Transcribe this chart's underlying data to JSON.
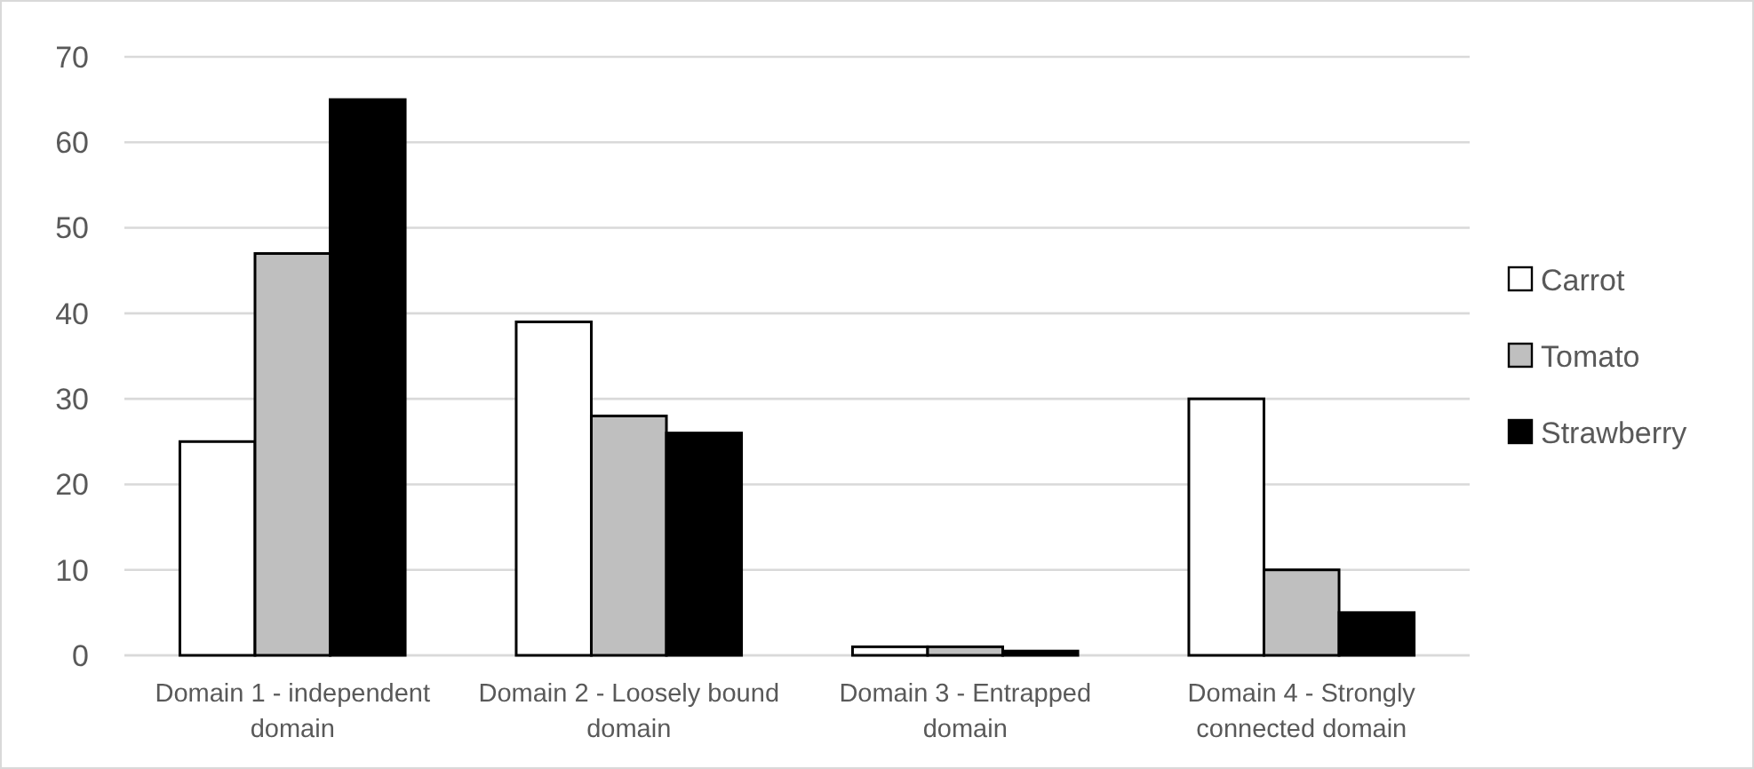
{
  "chart_data": {
    "type": "bar",
    "categories": [
      "Domain 1 - independent domain",
      "Domain 2 - Loosely bound domain",
      "Domain 3 - Entrapped domain",
      "Domain 4 - Strongly connected domain"
    ],
    "series": [
      {
        "name": "Carrot",
        "color": "#ffffff",
        "values": [
          25,
          39,
          1,
          30
        ]
      },
      {
        "name": "Tomato",
        "color": "#bfbfbf",
        "values": [
          47,
          28,
          1,
          10
        ]
      },
      {
        "name": "Strawberry",
        "color": "#000000",
        "values": [
          65,
          26,
          0.5,
          5
        ]
      }
    ],
    "ylim": [
      0,
      70
    ],
    "yticks": [
      0,
      10,
      20,
      30,
      40,
      50,
      60,
      70
    ],
    "grid": "y",
    "legend": "right"
  }
}
